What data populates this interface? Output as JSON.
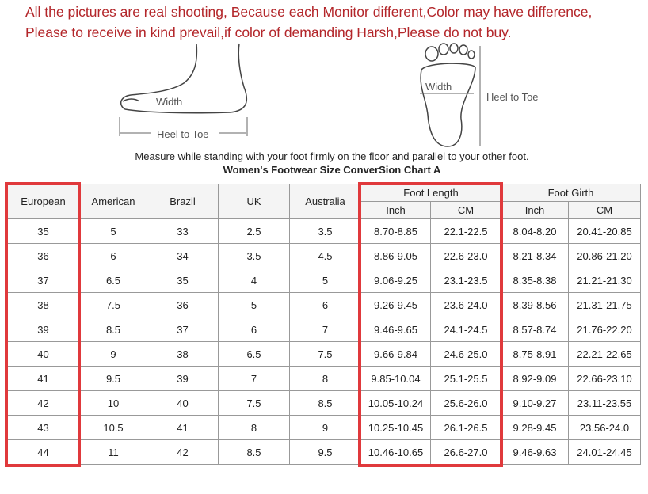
{
  "notice": {
    "line1": "All the pictures are real shooting, Because each Monitor different,Color may have difference,",
    "line2": "Please to receive in kind prevail,if color of demanding Harsh,Please do not buy."
  },
  "diagram": {
    "side_width_label": "Width",
    "side_length_label": "Heel to Toe",
    "sole_width_label": "Width",
    "sole_length_label": "Heel to Toe"
  },
  "instruction": "Measure while standing with your foot firmly on the floor and parallel to your other foot.",
  "chart_title": "Women's Footwear Size ConverSion Chart A",
  "highlight_color": "#e0393c",
  "table": {
    "headers": [
      "European",
      "American",
      "Brazil",
      "UK",
      "Australia"
    ],
    "group_headers": [
      "Foot Length",
      "Foot Girth"
    ],
    "sub_headers": [
      "Inch",
      "CM",
      "Inch",
      "CM"
    ],
    "rows": [
      [
        "35",
        "5",
        "33",
        "2.5",
        "3.5",
        "8.70-8.85",
        "22.1-22.5",
        "8.04-8.20",
        "20.41-20.85"
      ],
      [
        "36",
        "6",
        "34",
        "3.5",
        "4.5",
        "8.86-9.05",
        "22.6-23.0",
        "8.21-8.34",
        "20.86-21.20"
      ],
      [
        "37",
        "6.5",
        "35",
        "4",
        "5",
        "9.06-9.25",
        "23.1-23.5",
        "8.35-8.38",
        "21.21-21.30"
      ],
      [
        "38",
        "7.5",
        "36",
        "5",
        "6",
        "9.26-9.45",
        "23.6-24.0",
        "8.39-8.56",
        "21.31-21.75"
      ],
      [
        "39",
        "8.5",
        "37",
        "6",
        "7",
        "9.46-9.65",
        "24.1-24.5",
        "8.57-8.74",
        "21.76-22.20"
      ],
      [
        "40",
        "9",
        "38",
        "6.5",
        "7.5",
        "9.66-9.84",
        "24.6-25.0",
        "8.75-8.91",
        "22.21-22.65"
      ],
      [
        "41",
        "9.5",
        "39",
        "7",
        "8",
        "9.85-10.04",
        "25.1-25.5",
        "8.92-9.09",
        "22.66-23.10"
      ],
      [
        "42",
        "10",
        "40",
        "7.5",
        "8.5",
        "10.05-10.24",
        "25.6-26.0",
        "9.10-9.27",
        "23.11-23.55"
      ],
      [
        "43",
        "10.5",
        "41",
        "8",
        "9",
        "10.25-10.45",
        "26.1-26.5",
        "9.28-9.45",
        "23.56-24.0"
      ],
      [
        "44",
        "11",
        "42",
        "8.5",
        "9.5",
        "10.46-10.65",
        "26.6-27.0",
        "9.46-9.63",
        "24.01-24.45"
      ]
    ]
  }
}
